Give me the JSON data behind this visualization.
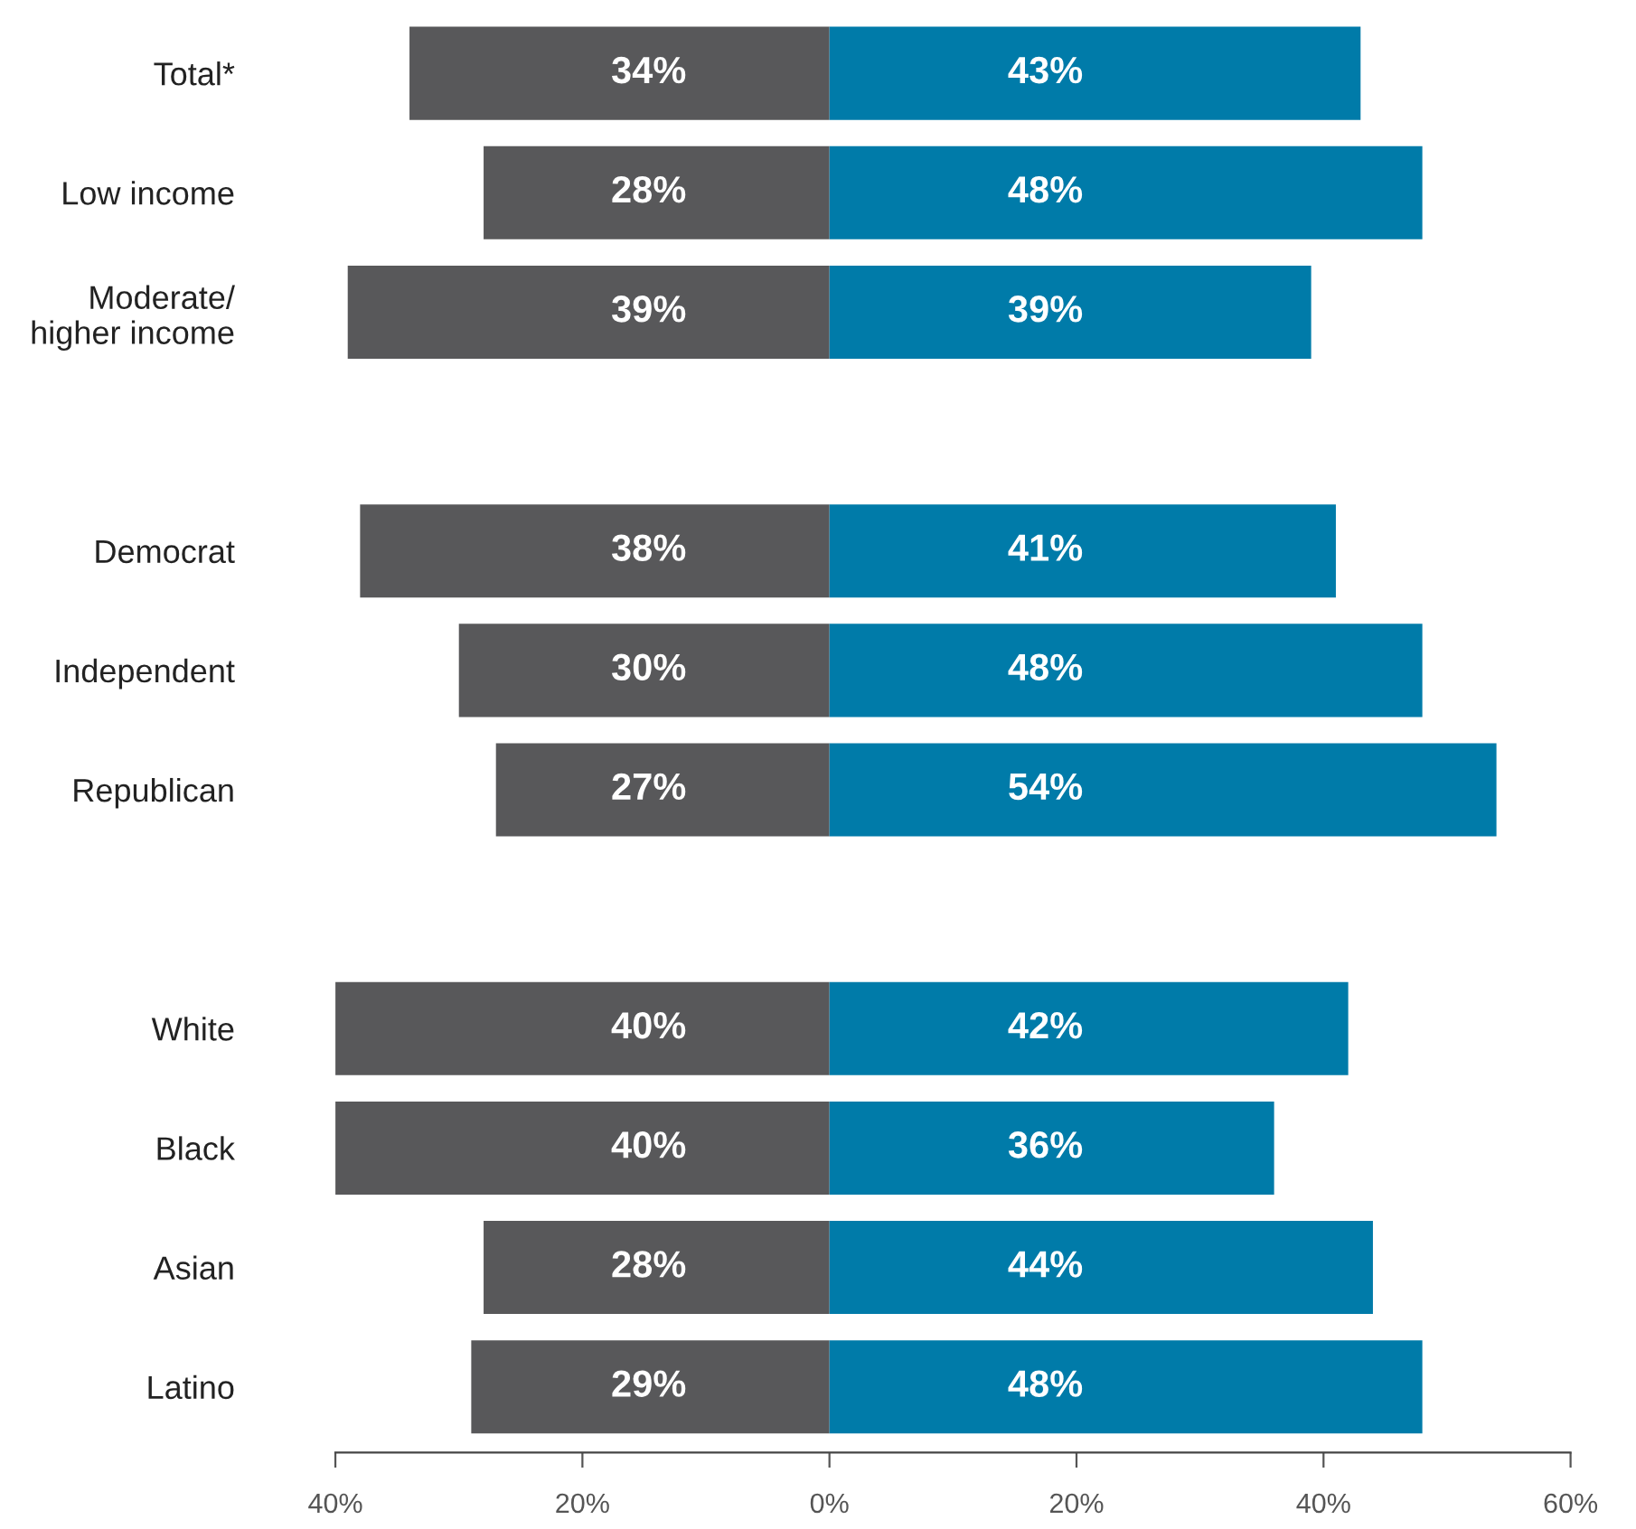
{
  "chart_data": {
    "type": "bar",
    "orientation": "horizontal",
    "categories": [
      "Total*",
      "Low income",
      "Moderate/\nhigher income",
      null,
      "Democrat",
      "Independent",
      "Republican",
      null,
      "White",
      "Black",
      "Asian",
      "Latino"
    ],
    "series": [
      {
        "color": "#58585a",
        "base": [
          -34,
          -28,
          -39,
          null,
          -38,
          -30,
          -27,
          null,
          -40,
          -40,
          -28,
          -29
        ],
        "values": [
          34,
          28,
          39,
          null,
          38,
          30,
          27,
          null,
          40,
          40,
          28,
          29
        ],
        "value_labels": [
          "34%",
          "28%",
          "39%",
          null,
          "38%",
          "30%",
          "27%",
          null,
          "40%",
          "40%",
          "28%",
          "29%"
        ]
      },
      {
        "color": "#007ba9",
        "values": [
          43,
          48,
          39,
          null,
          41,
          48,
          54,
          null,
          42,
          36,
          44,
          48
        ],
        "value_labels": [
          "43%",
          "48%",
          "39%",
          null,
          "41%",
          "48%",
          "54%",
          null,
          "42%",
          "36%",
          "44%",
          "48%"
        ]
      }
    ],
    "xlim": [
      -40,
      60
    ],
    "xticks": [
      {
        "value": -40,
        "label": "40%"
      },
      {
        "value": -20,
        "label": "20%"
      },
      {
        "value": 0,
        "label": "0%"
      },
      {
        "value": 20,
        "label": "20%"
      },
      {
        "value": 40,
        "label": "40%"
      },
      {
        "value": 60,
        "label": "60%"
      }
    ],
    "grid": false,
    "legend": false
  }
}
